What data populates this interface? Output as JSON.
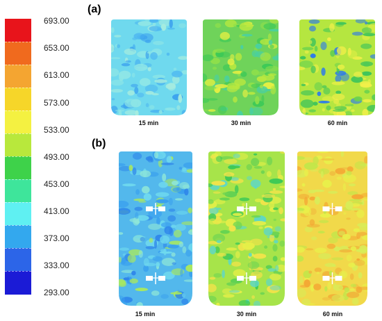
{
  "legend": {
    "ticks": [
      "693.00",
      "653.00",
      "613.00",
      "573.00",
      "533.00",
      "493.00",
      "453.00",
      "413.00",
      "373.00",
      "333.00",
      "293.00"
    ],
    "band_colors": [
      "#e8141b",
      "#f06a1e",
      "#f4a531",
      "#f6d629",
      "#f4f141",
      "#b8e83c",
      "#3ed24a",
      "#3ee59b",
      "#5ff0f2",
      "#33a8ee",
      "#2c65e8",
      "#1b1bd6"
    ]
  },
  "panels": {
    "a_label": "(a)",
    "b_label": "(b)"
  },
  "maps": {
    "a": [
      {
        "caption": "15 min",
        "base": "#6fd9ee",
        "spots": [
          "#4fb8f0",
          "#8ee6e6",
          "#3ea4ee",
          "#a6ecdf"
        ]
      },
      {
        "caption": "30 min",
        "base": "#6fd35a",
        "spots": [
          "#b9e83f",
          "#3ec957",
          "#8fe04a",
          "#e9f042",
          "#4ad0a0"
        ]
      },
      {
        "caption": "60 min",
        "base": "#b5e640",
        "spots": [
          "#e0ee45",
          "#6cd34e",
          "#3fc45a",
          "#f1ef4a",
          "#2f7be8"
        ]
      }
    ],
    "b": [
      {
        "caption": "15 min",
        "base": "#53b8ec",
        "spots": [
          "#3aa0ee",
          "#6fd9ee",
          "#2f86ea",
          "#8ee6d8",
          "#a8e860"
        ]
      },
      {
        "caption": "30 min",
        "base": "#a7e44a",
        "spots": [
          "#e6ef48",
          "#6fd452",
          "#5fd7c5",
          "#3ec957",
          "#f2e34a"
        ]
      },
      {
        "caption": "60 min",
        "base": "#f1d94a",
        "spots": [
          "#f0b73c",
          "#e9ef4a",
          "#c2e64a",
          "#f4a834",
          "#d8ec58"
        ]
      }
    ]
  }
}
